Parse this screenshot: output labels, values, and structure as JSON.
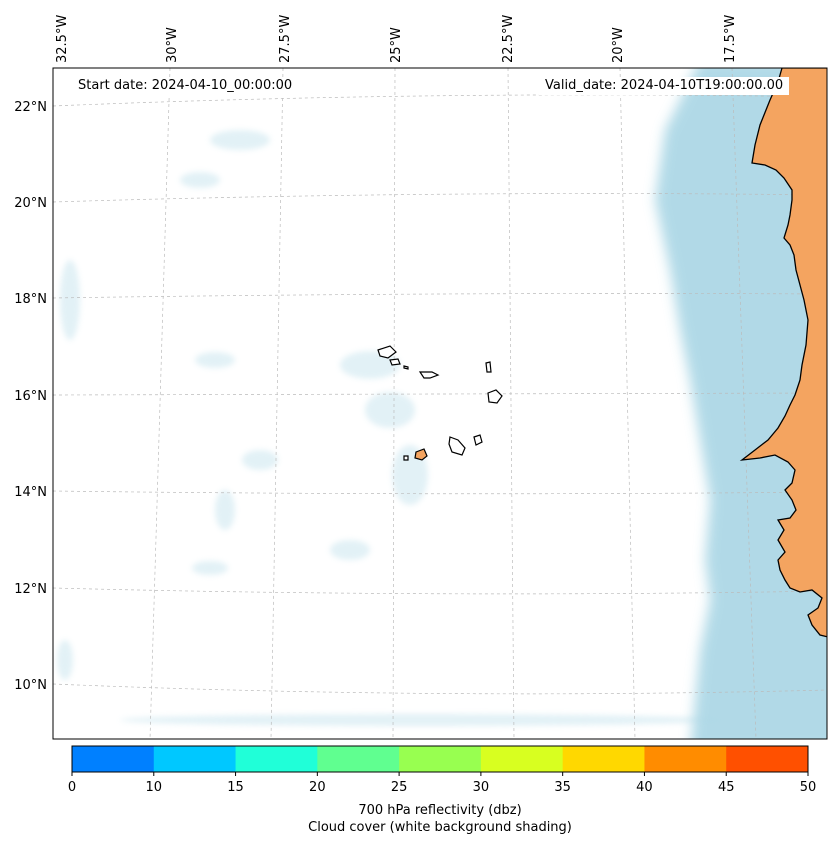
{
  "map": {
    "start_date": "Start date: 2024-04-10_00:00:00",
    "valid_date": "Valid_date: 2024-04-10T19:00:00.00",
    "longitude_labels": [
      "32.5°W",
      "30°W",
      "27.5°W",
      "25°W",
      "22.5°W",
      "20°W",
      "17.5°W"
    ],
    "latitude_labels": [
      "22°N",
      "20°N",
      "18°N",
      "16°N",
      "14°N",
      "12°N",
      "10°N"
    ],
    "colors": {
      "ocean_cloud": "#add8e6",
      "land": "#f4a460",
      "coast": "#000000",
      "grid": "#bbbbbb"
    }
  },
  "colorbar": {
    "ticks": [
      "0",
      "10",
      "15",
      "20",
      "25",
      "30",
      "35",
      "40",
      "45",
      "50"
    ],
    "colors": [
      "#0080ff",
      "#00c8ff",
      "#20ffd8",
      "#60ff90",
      "#98ff50",
      "#d8ff20",
      "#ffd800",
      "#ff8c00",
      "#ff5000"
    ],
    "label_line1": "700 hPa reflectivity (dbz)",
    "label_line2": "Cloud cover (white background shading)"
  }
}
